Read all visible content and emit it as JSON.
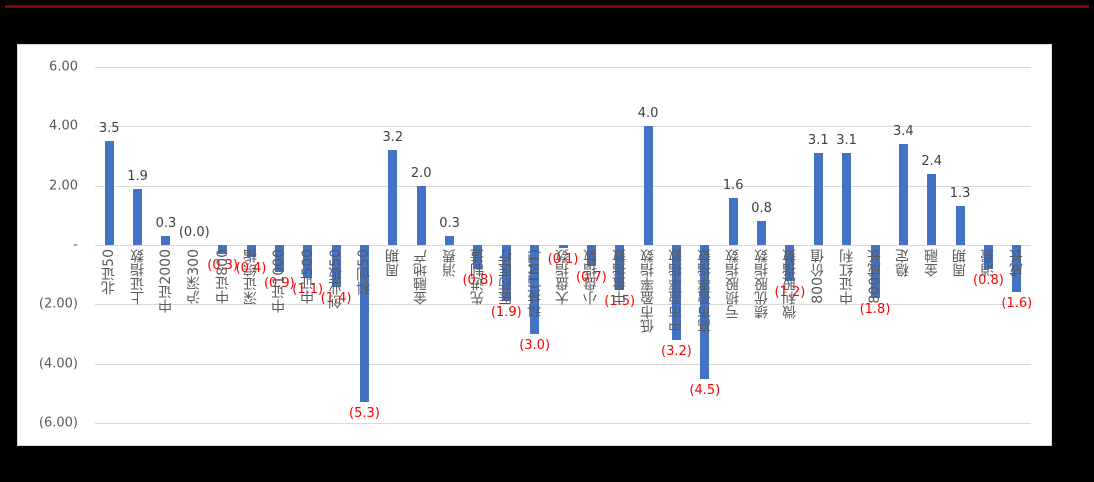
{
  "chart_data": {
    "type": "bar",
    "title": "",
    "xlabel": "",
    "ylabel": "",
    "ylim": [
      -6,
      6
    ],
    "yticks": [
      6,
      4,
      2,
      0,
      -2,
      -4,
      -6
    ],
    "ytick_labels": [
      "6.00",
      "4.00",
      "2.00",
      "-",
      "(2.00)",
      "(4.00)",
      "(6.00)"
    ],
    "grid": true,
    "legend": null,
    "bar_color": "#4472c4",
    "positive_label_color": "#404040",
    "negative_label_color": "#ff0000",
    "categories": [
      "北证50",
      "上证指数",
      "中证2000",
      "沪深300",
      "中证800",
      "深证综指",
      "中证1000",
      "中证500",
      "创业板50",
      "科创50",
      "周期",
      "金融地产",
      "消费",
      "先进制造",
      "医药医疗",
      "科技(TMT)",
      "大盘指数",
      "小盘指数",
      "中盘指数",
      "低市盈率指数",
      "中市盈率指数",
      "高市盈率指数",
      "亏损股指数",
      "绩优股指数",
      "微利股指数",
      "800价值",
      "中证红利",
      "800成长",
      "稳定",
      "金融",
      "周期",
      "消费",
      "成长"
    ],
    "values": [
      3.5,
      1.9,
      0.3,
      -0.0,
      -0.3,
      -0.4,
      -0.9,
      -1.1,
      -1.4,
      -5.3,
      3.2,
      2.0,
      0.3,
      -0.8,
      -1.9,
      -3.0,
      -0.1,
      -0.7,
      -1.5,
      4.0,
      -3.2,
      -4.5,
      1.6,
      0.8,
      -1.2,
      3.1,
      3.1,
      -1.8,
      3.4,
      2.4,
      1.3,
      -0.8,
      -1.6
    ],
    "value_labels": [
      "3.5",
      "1.9",
      "0.3",
      "(0.0)",
      "(0.3)",
      "(0.4)",
      "(0.9)",
      "(1.1)",
      "(1.4)",
      "(5.3)",
      "3.2",
      "2.0",
      "0.3",
      "(0.8)",
      "(1.9)",
      "(3.0)",
      "(0.1)",
      "(0.7)",
      "(1.5)",
      "4.0",
      "(3.2)",
      "(4.5)",
      "1.6",
      "0.8",
      "(1.2)",
      "3.1",
      "3.1",
      "(1.8)",
      "3.4",
      "2.4",
      "1.3",
      "(0.8)",
      "(1.6)"
    ]
  }
}
